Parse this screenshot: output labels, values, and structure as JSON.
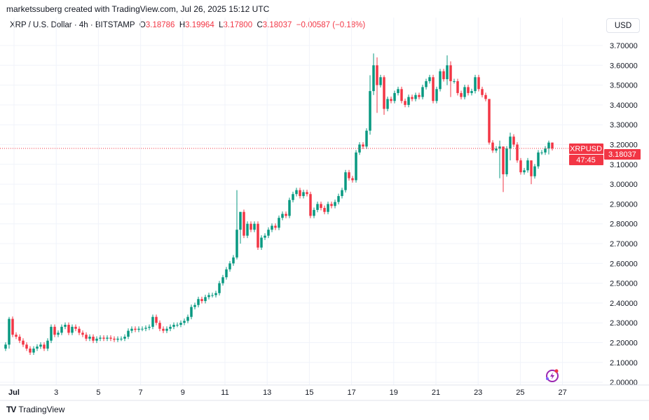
{
  "header": {
    "credit": "marketssuberg created with TradingView.com, Jul 26, 2025 15:12 UTC",
    "symbol": "XRP / U.S. Dollar · 4h · BITSTAMP",
    "o_label": "O",
    "o_value": "3.18786",
    "h_label": "H",
    "h_value": "3.19964",
    "l_label": "L",
    "l_value": "3.17800",
    "c_label": "C",
    "c_value": "3.18037",
    "change": "−0.00587 (−0.18%)"
  },
  "currency_button": "USD",
  "price_tag": {
    "symbol": "XRPUSD",
    "price": "3.18037",
    "countdown": "47:45"
  },
  "footer": {
    "logo_text": "TradingView"
  },
  "colors": {
    "up": "#089981",
    "down": "#f23645",
    "grid": "#f0f3fa",
    "text": "#131722"
  },
  "chart_data": {
    "type": "candlestick",
    "timeframe": "4h",
    "ylim": [
      2.0,
      3.7
    ],
    "y_ticks": [
      "3.70000",
      "3.60000",
      "3.50000",
      "3.40000",
      "3.30000",
      "3.20000",
      "3.10000",
      "3.00000",
      "2.90000",
      "2.80000",
      "2.70000",
      "2.60000",
      "2.50000",
      "2.40000",
      "2.30000",
      "2.20000",
      "2.10000",
      "2.00000"
    ],
    "x_ticks": [
      "Jul",
      "3",
      "5",
      "7",
      "9",
      "11",
      "13",
      "15",
      "17",
      "19",
      "21",
      "23",
      "25",
      "27"
    ],
    "first_open": 2.17,
    "close": [
      2.19,
      2.32,
      2.24,
      2.23,
      2.21,
      2.19,
      2.17,
      2.15,
      2.17,
      2.18,
      2.19,
      2.17,
      2.21,
      2.28,
      2.24,
      2.25,
      2.28,
      2.29,
      2.25,
      2.28,
      2.27,
      2.25,
      2.24,
      2.22,
      2.23,
      2.21,
      2.22,
      2.225,
      2.22,
      2.225,
      2.22,
      2.215,
      2.22,
      2.22,
      2.23,
      2.26,
      2.27,
      2.265,
      2.27,
      2.27,
      2.275,
      2.28,
      2.33,
      2.3,
      2.27,
      2.26,
      2.27,
      2.28,
      2.29,
      2.29,
      2.3,
      2.31,
      2.33,
      2.38,
      2.39,
      2.42,
      2.41,
      2.43,
      2.44,
      2.44,
      2.45,
      2.5,
      2.53,
      2.57,
      2.6,
      2.63,
      2.77,
      2.86,
      2.74,
      2.8,
      2.77,
      2.8,
      2.68,
      2.73,
      2.74,
      2.77,
      2.79,
      2.78,
      2.83,
      2.85,
      2.84,
      2.92,
      2.95,
      2.97,
      2.94,
      2.96,
      2.95,
      2.84,
      2.87,
      2.9,
      2.88,
      2.86,
      2.9,
      2.89,
      2.91,
      2.94,
      2.97,
      3.06,
      3.03,
      3.02,
      3.16,
      3.2,
      3.19,
      3.27,
      3.47,
      3.6,
      3.5,
      3.54,
      3.38,
      3.43,
      3.42,
      3.46,
      3.48,
      3.42,
      3.4,
      3.44,
      3.43,
      3.45,
      3.44,
      3.49,
      3.52,
      3.54,
      3.42,
      3.48,
      3.57,
      3.53,
      3.6,
      3.52,
      3.52,
      3.46,
      3.44,
      3.49,
      3.46,
      3.47,
      3.54,
      3.48,
      3.45,
      3.43,
      3.21,
      3.17,
      3.18,
      3.19,
      3.05,
      3.18,
      3.24,
      3.2,
      3.12,
      3.06,
      3.07,
      3.12,
      3.04,
      3.09,
      3.16,
      3.16,
      3.18,
      3.21,
      3.18037
    ],
    "wick_overrides": {
      "1": [
        2.33,
        2.17
      ],
      "66": [
        2.97,
        2.62
      ],
      "67": [
        2.86,
        2.7
      ],
      "104": [
        3.55,
        3.25
      ],
      "105": [
        3.66,
        3.45
      ],
      "106": [
        3.64,
        3.36
      ],
      "108": [
        3.55,
        3.35
      ],
      "126": [
        3.65,
        3.5
      ],
      "127": [
        3.62,
        3.44
      ],
      "138": [
        3.43,
        3.2
      ],
      "141": [
        3.22,
        3.03
      ],
      "142": [
        3.19,
        2.96
      ],
      "144": [
        3.26,
        3.12
      ],
      "150": [
        3.12,
        3.0
      ],
      "155": [
        3.22,
        3.15
      ],
      "156": [
        3.21,
        3.17
      ]
    },
    "last_price": 3.18037
  }
}
